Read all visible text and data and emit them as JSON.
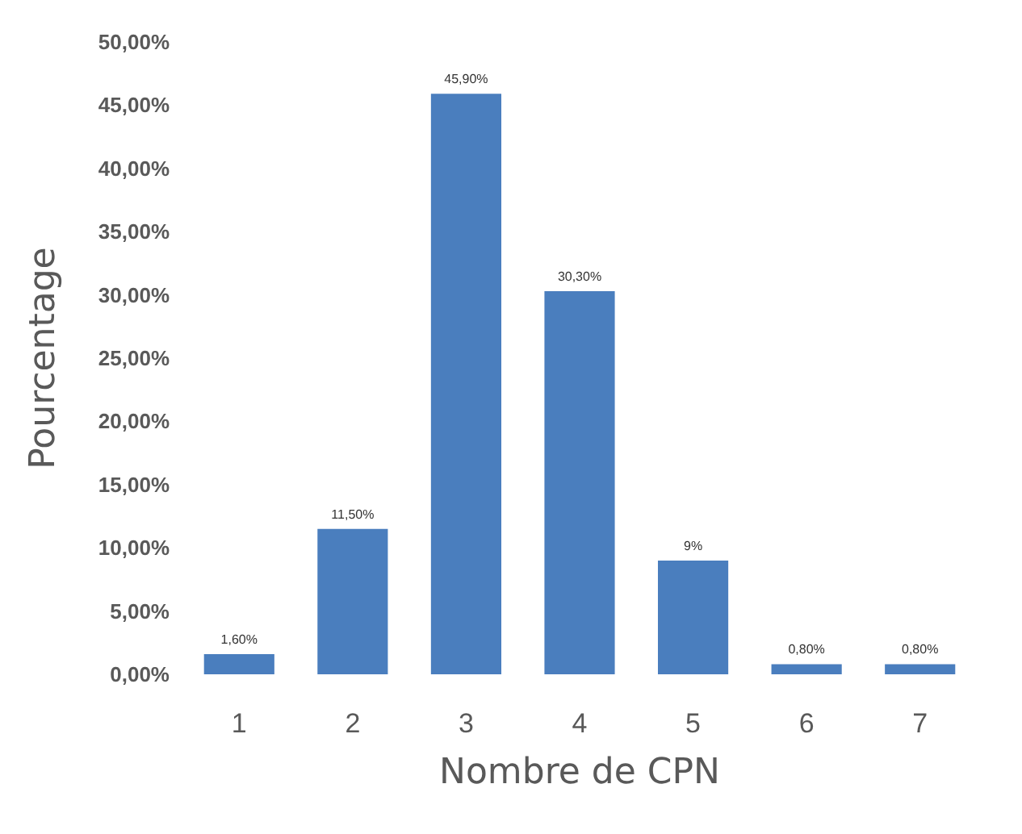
{
  "chart_data": {
    "type": "bar",
    "xlabel": "Nombre de CPN",
    "ylabel": "Pourcentage",
    "categories": [
      "1",
      "2",
      "3",
      "4",
      "5",
      "6",
      "7"
    ],
    "values": [
      1.6,
      11.5,
      45.9,
      30.3,
      9,
      0.8,
      0.8
    ],
    "value_labels": [
      "1,60%",
      "11,50%",
      "45,90%",
      "30,30%",
      "9%",
      "0,80%",
      "0,80%"
    ],
    "color": "#4a7ebe",
    "ylim": [
      0,
      50
    ],
    "yticks": [
      {
        "value": 0,
        "label": "0,00%"
      },
      {
        "value": 5,
        "label": "5,00%"
      },
      {
        "value": 10,
        "label": "10,00%"
      },
      {
        "value": 15,
        "label": "15,00%"
      },
      {
        "value": 20,
        "label": "20,00%"
      },
      {
        "value": 25,
        "label": "25,00%"
      },
      {
        "value": 30,
        "label": "30,00%"
      },
      {
        "value": 35,
        "label": "35,00%"
      },
      {
        "value": 40,
        "label": "40,00%"
      },
      {
        "value": 45,
        "label": "45,00%"
      },
      {
        "value": 50,
        "label": "50,00%"
      }
    ],
    "grid": false
  }
}
